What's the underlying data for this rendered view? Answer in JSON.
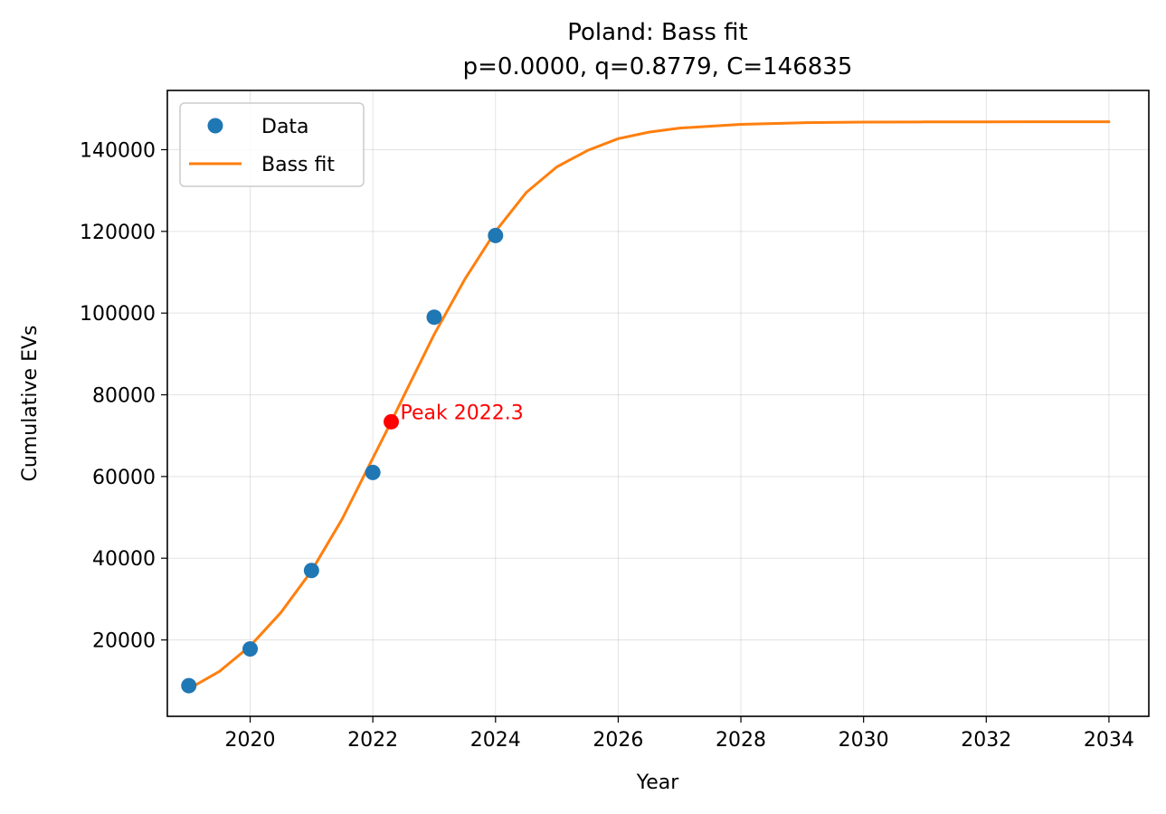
{
  "chart_data": {
    "type": "line",
    "title": "Poland: Bass fit",
    "subtitle": "p=0.0000, q=0.8779, C=146835",
    "xlabel": "Year",
    "ylabel": "Cumulative EVs",
    "xlim": [
      2018.65,
      2034.65
    ],
    "ylim": [
      1300,
      154500
    ],
    "xticks": [
      2020,
      2022,
      2024,
      2026,
      2028,
      2030,
      2032,
      2034
    ],
    "yticks": [
      20000,
      40000,
      60000,
      80000,
      100000,
      120000,
      140000
    ],
    "grid": true,
    "legend_position": "top-left",
    "series": [
      {
        "name": "Data",
        "kind": "scatter",
        "color": "#1f77b4",
        "x": [
          2019,
          2020,
          2021,
          2022,
          2023,
          2024
        ],
        "y": [
          8800,
          17800,
          37000,
          61000,
          99000,
          119000
        ]
      },
      {
        "name": "Bass fit",
        "kind": "line",
        "color": "#ff7f0e",
        "x": [
          2019,
          2019.5,
          2020,
          2020.5,
          2021,
          2021.5,
          2022,
          2022.3,
          2022.5,
          2023,
          2023.5,
          2024,
          2024.5,
          2025,
          2025.5,
          2026,
          2026.5,
          2027,
          2028,
          2029,
          2030,
          2031,
          2032,
          2033,
          2034
        ],
        "y": [
          8000,
          12300,
          18500,
          26700,
          36900,
          49600,
          64500,
          73400,
          79600,
          94800,
          108300,
          120000,
          129500,
          135800,
          139800,
          142700,
          144300,
          145300,
          146200,
          146600,
          146750,
          146800,
          146820,
          146830,
          146835
        ]
      }
    ],
    "annotations": [
      {
        "text": "Peak 2022.3",
        "x": 2022.3,
        "y": 73400,
        "color": "#ff0000"
      }
    ]
  }
}
